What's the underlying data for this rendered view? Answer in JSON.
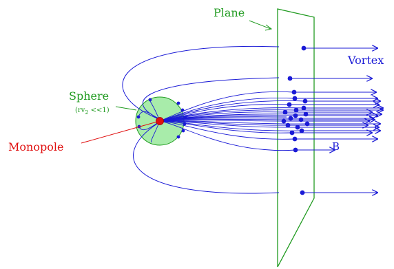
{
  "labels": {
    "plane": "Plane",
    "vortex": "Vortex",
    "sphere": "Sphere",
    "sphere_condition_pre": "(rv",
    "sphere_condition_sub": "2",
    "sphere_condition_post": " <<1)",
    "monopole": "Monopole",
    "field": "B"
  },
  "colors": {
    "field_lines": "#1a1ad6",
    "plane": "#1f9a1f",
    "sphere_fill": "#a8ecaa",
    "sphere_stroke": "#1f9a1f",
    "monopole": "#e01010",
    "label_green": "#1f9a1f",
    "label_red": "#e01010",
    "label_blue": "#1a1ad6"
  }
}
